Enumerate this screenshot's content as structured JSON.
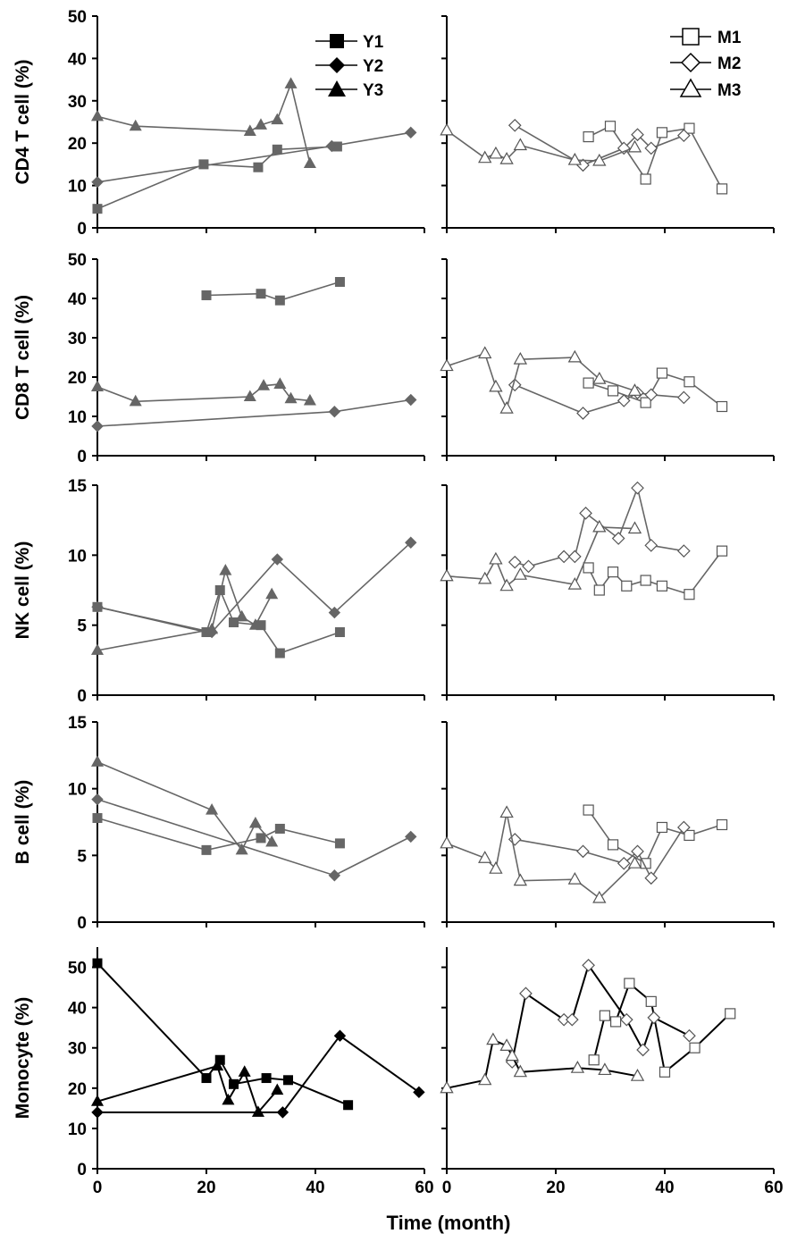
{
  "chart_data": {
    "type": "line",
    "xlabel": "Time (month)",
    "xlim": [
      0,
      60
    ],
    "xticks": [
      "0",
      "20",
      "40",
      "60"
    ],
    "legend_left": [
      "Y1",
      "Y2",
      "Y3"
    ],
    "legend_right": [
      "M1",
      "M2",
      "M3"
    ],
    "colors": {
      "filled_gray": "#666666",
      "black": "#000000",
      "open_stroke": "#555555",
      "line_gray": "#666666"
    },
    "rows": [
      {
        "ylabel": "CD4 T cell (%)",
        "ylim": [
          0,
          50
        ],
        "yticks": [
          "0",
          "10",
          "20",
          "30",
          "40",
          "50"
        ],
        "left": [
          {
            "name": "Y1",
            "marker": "square",
            "points": [
              [
                0,
                4.5
              ],
              [
                19.5,
                15
              ],
              [
                29.5,
                14.3
              ],
              [
                33,
                18.5
              ],
              [
                44,
                19.2
              ]
            ]
          },
          {
            "name": "Y2",
            "marker": "diamond",
            "points": [
              [
                0,
                10.8
              ],
              [
                43,
                19.3
              ],
              [
                57.5,
                22.5
              ]
            ]
          },
          {
            "name": "Y3",
            "marker": "triangle",
            "points": [
              [
                0,
                26.3
              ],
              [
                7,
                24
              ],
              [
                28,
                22.8
              ],
              [
                30,
                24.3
              ],
              [
                33,
                25.5
              ],
              [
                35.5,
                34
              ],
              [
                39,
                15.2
              ]
            ]
          }
        ],
        "right": [
          {
            "name": "M1",
            "marker": "square",
            "points": [
              [
                26,
                21.5
              ],
              [
                30,
                24
              ],
              [
                36.5,
                11.5
              ],
              [
                39.5,
                22.5
              ],
              [
                44.5,
                23.5
              ],
              [
                50.5,
                9.2
              ]
            ]
          },
          {
            "name": "M2",
            "marker": "diamond",
            "points": [
              [
                12.5,
                24.2
              ],
              [
                25,
                14.8
              ],
              [
                32.5,
                18.8
              ],
              [
                35,
                22
              ],
              [
                37.5,
                18.8
              ],
              [
                43.5,
                21.8
              ]
            ]
          },
          {
            "name": "M3",
            "marker": "triangle",
            "points": [
              [
                0,
                23
              ],
              [
                7,
                16.5
              ],
              [
                9,
                17.5
              ],
              [
                11,
                16.2
              ],
              [
                13.5,
                19.5
              ],
              [
                23.5,
                16
              ],
              [
                28,
                15.8
              ],
              [
                34.5,
                19
              ]
            ]
          }
        ]
      },
      {
        "ylabel": "CD8 T cell (%)",
        "ylim": [
          0,
          50
        ],
        "yticks": [
          "0",
          "10",
          "20",
          "30",
          "40",
          "50"
        ],
        "left": [
          {
            "name": "Y1",
            "marker": "square",
            "points": [
              [
                20,
                40.8
              ],
              [
                30,
                41.2
              ],
              [
                33.5,
                39.5
              ],
              [
                44.5,
                44.2
              ]
            ]
          },
          {
            "name": "Y2",
            "marker": "diamond",
            "points": [
              [
                0,
                7.5
              ],
              [
                43.5,
                11.2
              ],
              [
                57.5,
                14.2
              ]
            ]
          },
          {
            "name": "Y3",
            "marker": "triangle",
            "points": [
              [
                0,
                17.5
              ],
              [
                7,
                13.8
              ],
              [
                28,
                15
              ],
              [
                30.5,
                17.8
              ],
              [
                33.5,
                18.2
              ],
              [
                35.5,
                14.5
              ],
              [
                39,
                14
              ]
            ]
          }
        ],
        "right": [
          {
            "name": "M1",
            "marker": "square",
            "points": [
              [
                26,
                18.5
              ],
              [
                30.5,
                16.5
              ],
              [
                36.5,
                13.5
              ],
              [
                39.5,
                21
              ],
              [
                44.5,
                18.8
              ],
              [
                50.5,
                12.5
              ]
            ]
          },
          {
            "name": "M2",
            "marker": "diamond",
            "points": [
              [
                12.5,
                18
              ],
              [
                25,
                10.8
              ],
              [
                32.5,
                14
              ],
              [
                35,
                16
              ],
              [
                37.5,
                15.5
              ],
              [
                43.5,
                14.8
              ]
            ]
          },
          {
            "name": "M3",
            "marker": "triangle",
            "points": [
              [
                0,
                22.8
              ],
              [
                7,
                26
              ],
              [
                9,
                17.5
              ],
              [
                11,
                12
              ],
              [
                13.5,
                24.5
              ],
              [
                23.5,
                25
              ],
              [
                28,
                19.5
              ],
              [
                34.5,
                16.5
              ]
            ]
          }
        ]
      },
      {
        "ylabel": "NK cell (%)",
        "ylim": [
          0,
          15
        ],
        "yticks": [
          "0",
          "5",
          "10",
          "15"
        ],
        "left": [
          {
            "name": "Y1",
            "marker": "square",
            "points": [
              [
                0,
                6.3
              ],
              [
                20,
                4.5
              ],
              [
                22.5,
                7.5
              ],
              [
                25,
                5.2
              ],
              [
                30,
                5
              ],
              [
                33.5,
                3
              ],
              [
                44.5,
                4.5
              ]
            ]
          },
          {
            "name": "Y2",
            "marker": "diamond",
            "points": [
              [
                0,
                6.3
              ],
              [
                21,
                4.5
              ],
              [
                33,
                9.7
              ],
              [
                43.5,
                5.9
              ],
              [
                57.5,
                10.9
              ]
            ]
          },
          {
            "name": "Y3",
            "marker": "triangle",
            "points": [
              [
                0,
                3.2
              ],
              [
                21,
                4.7
              ],
              [
                23.5,
                8.9
              ],
              [
                26.5,
                5.6
              ],
              [
                29,
                5
              ],
              [
                32,
                7.2
              ]
            ]
          }
        ],
        "right": [
          {
            "name": "M1",
            "marker": "square",
            "points": [
              [
                26,
                9.1
              ],
              [
                28,
                7.5
              ],
              [
                30.5,
                8.8
              ],
              [
                33,
                7.8
              ],
              [
                36.5,
                8.2
              ],
              [
                39.5,
                7.8
              ],
              [
                44.5,
                7.2
              ],
              [
                50.5,
                10.3
              ]
            ]
          },
          {
            "name": "M2",
            "marker": "diamond",
            "points": [
              [
                12.5,
                9.5
              ],
              [
                15,
                9.2
              ],
              [
                21.5,
                9.9
              ],
              [
                23.5,
                9.9
              ],
              [
                25.5,
                13
              ],
              [
                31.5,
                11.2
              ],
              [
                35,
                14.8
              ],
              [
                37.5,
                10.7
              ],
              [
                43.5,
                10.3
              ]
            ]
          },
          {
            "name": "M3",
            "marker": "triangle",
            "points": [
              [
                0,
                8.5
              ],
              [
                7,
                8.3
              ],
              [
                9,
                9.7
              ],
              [
                11,
                7.8
              ],
              [
                13.5,
                8.6
              ],
              [
                23.5,
                7.9
              ],
              [
                28,
                12
              ],
              [
                34.5,
                11.9
              ]
            ]
          }
        ]
      },
      {
        "ylabel": "B cell (%)",
        "ylim": [
          0,
          15
        ],
        "yticks": [
          "0",
          "5",
          "10",
          "15"
        ],
        "left": [
          {
            "name": "Y1",
            "marker": "square",
            "points": [
              [
                0,
                7.8
              ],
              [
                20,
                5.4
              ],
              [
                30,
                6.3
              ],
              [
                33.5,
                7
              ],
              [
                44.5,
                5.9
              ]
            ]
          },
          {
            "name": "Y2",
            "marker": "diamond",
            "points": [
              [
                0,
                9.2
              ],
              [
                43.5,
                3.5
              ],
              [
                57.5,
                6.4
              ]
            ]
          },
          {
            "name": "Y3",
            "marker": "triangle",
            "points": [
              [
                0,
                12
              ],
              [
                21,
                8.4
              ],
              [
                26.5,
                5.4
              ],
              [
                29,
                7.4
              ],
              [
                32,
                6
              ]
            ]
          }
        ],
        "right": [
          {
            "name": "M1",
            "marker": "square",
            "points": [
              [
                26,
                8.4
              ],
              [
                30.5,
                5.8
              ],
              [
                36.5,
                4.4
              ],
              [
                39.5,
                7.1
              ],
              [
                44.5,
                6.5
              ],
              [
                50.5,
                7.3
              ]
            ]
          },
          {
            "name": "M2",
            "marker": "diamond",
            "points": [
              [
                12.5,
                6.2
              ],
              [
                25,
                5.3
              ],
              [
                32.5,
                4.4
              ],
              [
                35,
                5.3
              ],
              [
                37.5,
                3.3
              ],
              [
                43.5,
                7.1
              ]
            ]
          },
          {
            "name": "M3",
            "marker": "triangle",
            "points": [
              [
                0,
                5.9
              ],
              [
                7,
                4.8
              ],
              [
                9,
                4
              ],
              [
                11,
                8.2
              ],
              [
                13.5,
                3.1
              ],
              [
                23.5,
                3.2
              ],
              [
                28,
                1.8
              ],
              [
                34.5,
                4.4
              ]
            ]
          }
        ]
      },
      {
        "ylabel": "Monocyte (%)",
        "ylim": [
          0,
          55
        ],
        "yticks": [
          "0",
          "10",
          "20",
          "30",
          "40",
          "50"
        ],
        "left": [
          {
            "name": "Y1",
            "marker": "square",
            "points": [
              [
                0,
                51
              ],
              [
                20,
                22.5
              ],
              [
                22.5,
                27
              ],
              [
                25,
                21
              ],
              [
                31,
                22.5
              ],
              [
                35,
                22
              ],
              [
                46,
                15.8
              ]
            ]
          },
          {
            "name": "Y2",
            "marker": "diamond",
            "points": [
              [
                0,
                14
              ],
              [
                34,
                14
              ],
              [
                44.5,
                33
              ],
              [
                59,
                19
              ]
            ]
          },
          {
            "name": "Y3",
            "marker": "triangle",
            "points": [
              [
                0,
                16.7
              ],
              [
                22,
                25.5
              ],
              [
                24,
                17
              ],
              [
                27,
                24
              ],
              [
                29.5,
                14
              ],
              [
                33,
                19.5
              ]
            ]
          }
        ],
        "right": [
          {
            "name": "M1",
            "marker": "square",
            "points": [
              [
                27,
                27
              ],
              [
                29,
                38
              ],
              [
                31,
                36.5
              ],
              [
                33.5,
                46
              ],
              [
                37.5,
                41.5
              ],
              [
                40,
                24
              ],
              [
                45.5,
                30
              ],
              [
                52,
                38.5
              ]
            ]
          },
          {
            "name": "M2",
            "marker": "diamond",
            "points": [
              [
                12,
                26.5
              ],
              [
                14.5,
                43.5
              ],
              [
                21.5,
                37
              ],
              [
                23,
                37
              ],
              [
                26,
                50.5
              ],
              [
                33,
                37
              ],
              [
                36,
                29.5
              ],
              [
                38,
                37.5
              ],
              [
                44.5,
                33
              ]
            ]
          },
          {
            "name": "M3",
            "marker": "triangle",
            "points": [
              [
                0,
                20
              ],
              [
                7,
                22
              ],
              [
                8.5,
                32
              ],
              [
                11,
                30.5
              ],
              [
                12,
                28
              ],
              [
                13.5,
                24
              ],
              [
                24,
                25
              ],
              [
                29,
                24.5
              ],
              [
                35,
                23
              ]
            ]
          }
        ]
      }
    ]
  }
}
